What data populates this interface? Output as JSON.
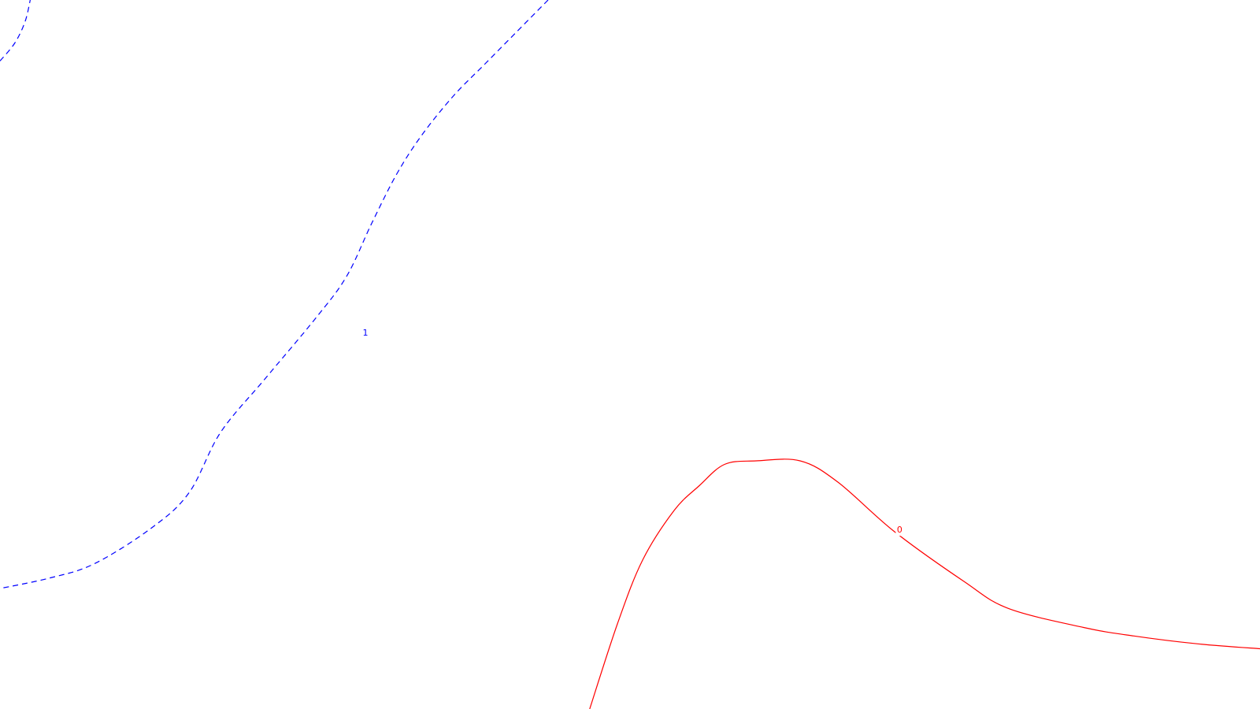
{
  "chart_data": {
    "type": "line",
    "title": "",
    "xlabel": "",
    "ylabel": "",
    "grid": false,
    "series": [
      {
        "label": "1",
        "color": "#0000ff",
        "dashed": true,
        "segments": [
          [
            [
              0.0,
              0.914
            ],
            [
              0.012,
              0.94
            ],
            [
              0.02,
              0.97
            ],
            [
              0.024,
              1.0
            ]
          ],
          [
            [
              0.435,
              1.0
            ],
            [
              0.41,
              0.955
            ],
            [
              0.385,
              0.91
            ],
            [
              0.36,
              0.865
            ],
            [
              0.335,
              0.81
            ],
            [
              0.315,
              0.755
            ],
            [
              0.295,
              0.685
            ],
            [
              0.275,
              0.61
            ],
            [
              0.25,
              0.55
            ],
            [
              0.21,
              0.465
            ],
            [
              0.175,
              0.39
            ],
            [
              0.15,
              0.305
            ],
            [
              0.12,
              0.255
            ],
            [
              0.075,
              0.205
            ],
            [
              0.04,
              0.185
            ],
            [
              0.0,
              0.17
            ]
          ]
        ],
        "label_at": [
          0.29,
          0.53
        ]
      },
      {
        "label": "0",
        "color": "#ff0000",
        "dashed": false,
        "segments": [
          [
            [
              1.0,
              0.085
            ],
            [
              0.95,
              0.092
            ],
            [
              0.9,
              0.103
            ],
            [
              0.86,
              0.115
            ],
            [
              0.8,
              0.142
            ],
            [
              0.765,
              0.18
            ],
            [
              0.71,
              0.25
            ],
            [
              0.665,
              0.32
            ],
            [
              0.635,
              0.35
            ],
            [
              0.6,
              0.35
            ],
            [
              0.575,
              0.345
            ],
            [
              0.555,
              0.315
            ],
            [
              0.535,
              0.28
            ],
            [
              0.51,
              0.21
            ],
            [
              0.49,
              0.12
            ],
            [
              0.468,
              0.0
            ]
          ]
        ],
        "label_at": [
          0.714,
          0.252
        ]
      }
    ]
  }
}
